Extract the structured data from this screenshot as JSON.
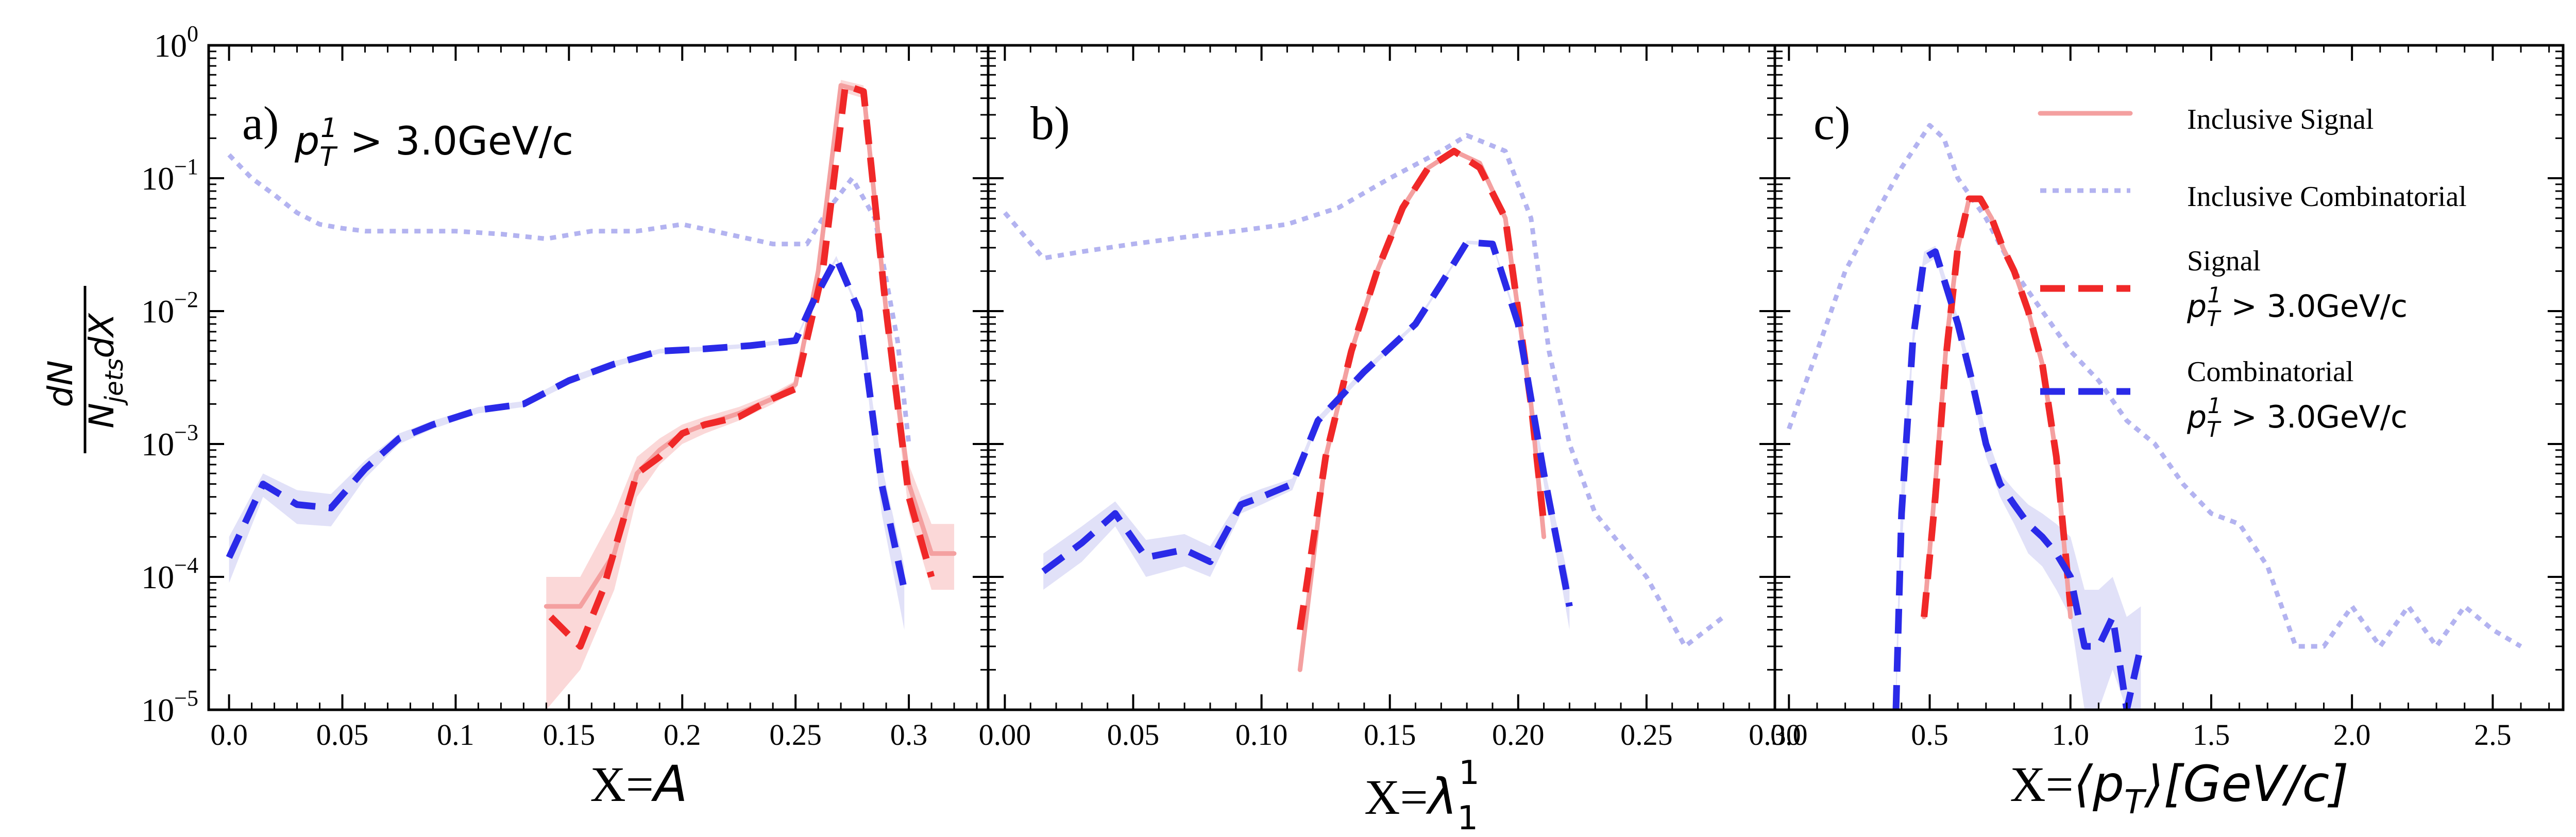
{
  "figure": {
    "ylabel_numer": "dN",
    "ylabel_denom_main": "N",
    "ylabel_denom_sub": "jets",
    "ylabel_denom_tail": "dX",
    "yticks": [
      {
        "base": "10",
        "exp": "0",
        "value": 1
      },
      {
        "base": "10",
        "exp": "−1",
        "value": 0.1
      },
      {
        "base": "10",
        "exp": "−2",
        "value": 0.01
      },
      {
        "base": "10",
        "exp": "−3",
        "value": 0.001
      },
      {
        "base": "10",
        "exp": "−4",
        "value": 0.0001
      },
      {
        "base": "10",
        "exp": "−5",
        "value": 1e-05
      }
    ],
    "colors": {
      "inclusive_signal": "#f4a0a0",
      "inclusive_combinatorial": "#b3b3f0",
      "signal": "#f02828",
      "combinatorial": "#2a2ae8",
      "band_blue": "#c9c9f2",
      "band_red": "#f7b8b8",
      "axis": "#000000"
    }
  },
  "legend": {
    "items": [
      {
        "key": "inclusive_signal",
        "label": "Inclusive Signal",
        "cut": ""
      },
      {
        "key": "inclusive_combinatorial",
        "label": "Inclusive Combinatorial",
        "cut": ""
      },
      {
        "key": "signal",
        "label": "Signal",
        "cut": "p_T^1 > 3.0GeV/c"
      },
      {
        "key": "combinatorial",
        "label": "Combinatorial",
        "cut": "p_T^1 > 3.0GeV/c"
      }
    ],
    "cut_main": "p",
    "cut_sub": "T",
    "cut_sup": "1",
    "cut_tail": " > 3.0GeV/c"
  },
  "chart_data": [
    {
      "type": "line",
      "panel_label": "a)",
      "annotation": "p_T^1 > 3.0GeV/c",
      "xlabel_prefix": "X=",
      "xlabel_var": "A",
      "xlim": [
        -0.009,
        0.335
      ],
      "ylim": [
        1e-05,
        1
      ],
      "yscale": "log",
      "xticks": [
        0.0,
        0.05,
        0.1,
        0.15,
        0.2,
        0.25,
        0.3
      ],
      "xtick_labels": [
        "0.0",
        "0.05",
        "0.1",
        "0.15",
        "0.2",
        "0.25",
        "0.3"
      ],
      "series": [
        {
          "name": "Inclusive Combinatorial",
          "key": "inclusive_combinatorial",
          "x": [
            0.0,
            0.01,
            0.02,
            0.03,
            0.04,
            0.05,
            0.06,
            0.08,
            0.1,
            0.12,
            0.14,
            0.16,
            0.18,
            0.2,
            0.22,
            0.24,
            0.255,
            0.265,
            0.275,
            0.285,
            0.295,
            0.3
          ],
          "y": [
            0.15,
            0.1,
            0.075,
            0.055,
            0.045,
            0.042,
            0.04,
            0.04,
            0.04,
            0.038,
            0.035,
            0.04,
            0.04,
            0.045,
            0.038,
            0.032,
            0.032,
            0.06,
            0.1,
            0.05,
            0.006,
            0.001
          ]
        },
        {
          "name": "Inclusive Signal",
          "key": "inclusive_signal",
          "x": [
            0.14,
            0.155,
            0.17,
            0.18,
            0.19,
            0.2,
            0.21,
            0.225,
            0.24,
            0.25,
            0.26,
            0.27,
            0.28,
            0.29,
            0.3,
            0.31,
            0.32
          ],
          "y": [
            6e-05,
            6e-05,
            0.00015,
            0.0006,
            0.0009,
            0.0012,
            0.0014,
            0.0017,
            0.0022,
            0.0028,
            0.02,
            0.5,
            0.45,
            0.01,
            0.0005,
            0.00015,
            0.00015
          ],
          "band_lo": [
            1e-05,
            2e-05,
            8e-05,
            0.0004,
            0.0007,
            0.001,
            0.0012,
            0.0015,
            0.002,
            0.0025,
            0.018,
            0.45,
            0.4,
            0.008,
            0.0003,
            8e-05,
            8e-05
          ],
          "band_hi": [
            0.0001,
            0.0001,
            0.0003,
            0.0008,
            0.0011,
            0.0014,
            0.0016,
            0.0019,
            0.0024,
            0.003,
            0.022,
            0.55,
            0.5,
            0.012,
            0.0007,
            0.00025,
            0.00025
          ]
        },
        {
          "name": "Signal",
          "key": "signal",
          "x": [
            0.142,
            0.155,
            0.165,
            0.18,
            0.19,
            0.2,
            0.21,
            0.225,
            0.24,
            0.25,
            0.262,
            0.272,
            0.28,
            0.29,
            0.3,
            0.31
          ],
          "y": [
            5e-05,
            3e-05,
            8e-05,
            0.0006,
            0.0008,
            0.0012,
            0.0014,
            0.0016,
            0.0022,
            0.0026,
            0.02,
            0.5,
            0.45,
            0.01,
            0.0004,
            0.0001
          ]
        },
        {
          "name": "Combinatorial",
          "key": "combinatorial",
          "x": [
            0.0,
            0.015,
            0.03,
            0.045,
            0.06,
            0.075,
            0.09,
            0.11,
            0.13,
            0.15,
            0.17,
            0.19,
            0.21,
            0.23,
            0.25,
            0.258,
            0.268,
            0.278,
            0.288,
            0.298
          ],
          "y": [
            0.00014,
            0.0005,
            0.00035,
            0.00033,
            0.00065,
            0.0011,
            0.0014,
            0.0018,
            0.002,
            0.003,
            0.004,
            0.005,
            0.0052,
            0.0055,
            0.006,
            0.012,
            0.025,
            0.01,
            0.0005,
            8e-05
          ],
          "band_lo": [
            9e-05,
            0.0004,
            0.00025,
            0.00024,
            0.00055,
            0.001,
            0.0013,
            0.0017,
            0.0019,
            0.0028,
            0.0038,
            0.0048,
            0.005,
            0.0053,
            0.0058,
            0.0115,
            0.024,
            0.0095,
            0.0003,
            4e-05
          ],
          "band_hi": [
            0.0002,
            0.0006,
            0.00045,
            0.00042,
            0.00075,
            0.0012,
            0.0015,
            0.0019,
            0.0021,
            0.0032,
            0.0042,
            0.0052,
            0.0054,
            0.0057,
            0.0062,
            0.0125,
            0.026,
            0.0105,
            0.0007,
            0.00012
          ]
        }
      ]
    },
    {
      "type": "line",
      "panel_label": "b)",
      "annotation": "",
      "xlabel_prefix": "X=",
      "xlabel_var": "λ",
      "xlabel_sub": "1",
      "xlabel_sup": "1",
      "xlim": [
        -0.0065,
        0.3
      ],
      "ylim": [
        1e-05,
        1
      ],
      "yscale": "log",
      "xticks": [
        0.0,
        0.05,
        0.1,
        0.15,
        0.2,
        0.25,
        0.3
      ],
      "xtick_labels": [
        "0.00",
        "0.05",
        "0.10",
        "0.15",
        "0.20",
        "0.25",
        "0.30"
      ],
      "series": [
        {
          "name": "Inclusive Combinatorial",
          "key": "inclusive_combinatorial",
          "x": [
            0.0,
            0.015,
            0.03,
            0.05,
            0.07,
            0.09,
            0.11,
            0.13,
            0.15,
            0.17,
            0.18,
            0.195,
            0.205,
            0.212,
            0.22,
            0.23,
            0.25,
            0.265,
            0.28
          ],
          "y": [
            0.055,
            0.025,
            0.028,
            0.032,
            0.036,
            0.04,
            0.045,
            0.06,
            0.1,
            0.16,
            0.21,
            0.16,
            0.05,
            0.005,
            0.001,
            0.0003,
            0.0001,
            3e-05,
            5e-05
          ]
        },
        {
          "name": "Inclusive Signal",
          "key": "inclusive_signal",
          "x": [
            0.115,
            0.125,
            0.135,
            0.145,
            0.155,
            0.165,
            0.175,
            0.185,
            0.195,
            0.2,
            0.205,
            0.21
          ],
          "y": [
            2e-05,
            0.0008,
            0.005,
            0.02,
            0.06,
            0.12,
            0.16,
            0.13,
            0.05,
            0.01,
            0.002,
            0.0002
          ]
        },
        {
          "name": "Signal",
          "key": "signal",
          "x": [
            0.115,
            0.125,
            0.135,
            0.145,
            0.155,
            0.165,
            0.175,
            0.185,
            0.195,
            0.2,
            0.205,
            0.21
          ],
          "y": [
            4e-05,
            0.0008,
            0.005,
            0.02,
            0.06,
            0.12,
            0.16,
            0.12,
            0.05,
            0.01,
            0.002,
            0.00025
          ]
        },
        {
          "name": "Combinatorial",
          "key": "combinatorial",
          "x": [
            0.015,
            0.03,
            0.043,
            0.055,
            0.07,
            0.08,
            0.092,
            0.1,
            0.112,
            0.122,
            0.14,
            0.16,
            0.17,
            0.18,
            0.19,
            0.2,
            0.21,
            0.22
          ],
          "y": [
            0.00011,
            0.00018,
            0.0003,
            0.00014,
            0.00016,
            0.00013,
            0.00035,
            0.0004,
            0.0005,
            0.0015,
            0.0035,
            0.008,
            0.016,
            0.033,
            0.032,
            0.008,
            0.0006,
            6e-05
          ],
          "band_lo": [
            8e-05,
            0.00013,
            0.00024,
            0.0001,
            0.00012,
            0.0001,
            0.0003,
            0.00035,
            0.00045,
            0.0014,
            0.0033,
            0.0077,
            0.0155,
            0.032,
            0.031,
            0.0075,
            0.0005,
            4e-05
          ],
          "band_hi": [
            0.00015,
            0.00024,
            0.00037,
            0.00019,
            0.00021,
            0.00017,
            0.0004,
            0.00046,
            0.00055,
            0.0016,
            0.0037,
            0.0083,
            0.0165,
            0.034,
            0.033,
            0.0085,
            0.0007,
            9e-05
          ]
        }
      ]
    },
    {
      "type": "line",
      "panel_label": "c)",
      "annotation": "",
      "xlabel_prefix": "X=",
      "xlabel_var": "⟨p",
      "xlabel_sub": "T",
      "xlabel_tail": "⟩[GeV/c]",
      "xlim": [
        -0.05,
        2.75
      ],
      "ylim": [
        1e-05,
        1
      ],
      "yscale": "log",
      "xticks": [
        0.0,
        0.5,
        1.0,
        1.5,
        2.0,
        2.5
      ],
      "xtick_labels": [
        "0.0",
        "0.5",
        "1.0",
        "1.5",
        "2.0",
        "2.5"
      ],
      "series": [
        {
          "name": "Inclusive Combinatorial",
          "key": "inclusive_combinatorial",
          "x": [
            0.0,
            0.1,
            0.2,
            0.3,
            0.4,
            0.5,
            0.55,
            0.6,
            0.7,
            0.8,
            0.9,
            1.0,
            1.1,
            1.2,
            1.3,
            1.4,
            1.5,
            1.6,
            1.7,
            1.8,
            1.9,
            2.0,
            2.1,
            2.2,
            2.3,
            2.4,
            2.5,
            2.6
          ],
          "y": [
            0.0013,
            0.005,
            0.02,
            0.05,
            0.12,
            0.25,
            0.2,
            0.1,
            0.05,
            0.02,
            0.01,
            0.005,
            0.003,
            0.0015,
            0.001,
            0.0005,
            0.0003,
            0.00025,
            0.00012,
            3e-05,
            3e-05,
            6e-05,
            3e-05,
            6e-05,
            3e-05,
            6e-05,
            4e-05,
            3e-05
          ]
        },
        {
          "name": "Inclusive Signal",
          "key": "inclusive_signal",
          "x": [
            0.48,
            0.52,
            0.56,
            0.6,
            0.64,
            0.68,
            0.72,
            0.76,
            0.8,
            0.85,
            0.9,
            0.95,
            1.0
          ],
          "y": [
            5e-05,
            0.0005,
            0.006,
            0.03,
            0.07,
            0.07,
            0.05,
            0.03,
            0.02,
            0.01,
            0.004,
            0.0008,
            5e-05
          ]
        },
        {
          "name": "Signal",
          "key": "signal",
          "x": [
            0.48,
            0.52,
            0.56,
            0.6,
            0.64,
            0.68,
            0.72,
            0.76,
            0.8,
            0.85,
            0.9,
            0.95,
            1.0
          ],
          "y": [
            5e-05,
            0.0004,
            0.005,
            0.03,
            0.07,
            0.07,
            0.05,
            0.03,
            0.02,
            0.01,
            0.004,
            0.0008,
            6e-05
          ]
        },
        {
          "name": "Combinatorial",
          "key": "combinatorial",
          "x": [
            0.38,
            0.4,
            0.44,
            0.48,
            0.52,
            0.56,
            0.6,
            0.65,
            0.7,
            0.75,
            0.8,
            0.85,
            0.9,
            0.95,
            1.0,
            1.05,
            1.1,
            1.15,
            1.2,
            1.25
          ],
          "y": [
            1e-05,
            0.0003,
            0.006,
            0.025,
            0.028,
            0.015,
            0.008,
            0.003,
            0.001,
            0.0005,
            0.00035,
            0.00025,
            0.0002,
            0.00015,
            0.0001,
            3e-05,
            3e-05,
            5e-05,
            1e-05,
            3e-05
          ],
          "band_lo": [
            1e-05,
            0.00015,
            0.005,
            0.022,
            0.025,
            0.013,
            0.007,
            0.0025,
            0.0008,
            0.0004,
            0.00025,
            0.00015,
            0.00012,
            8e-05,
            5e-05,
            1e-05,
            1e-05,
            2e-05,
            1e-05,
            1e-05
          ],
          "band_hi": [
            2e-05,
            0.0005,
            0.007,
            0.028,
            0.031,
            0.017,
            0.009,
            0.0035,
            0.0012,
            0.0006,
            0.00045,
            0.00035,
            0.0003,
            0.00025,
            0.0002,
            8e-05,
            8e-05,
            0.0001,
            5e-05,
            6e-05
          ]
        }
      ]
    }
  ]
}
